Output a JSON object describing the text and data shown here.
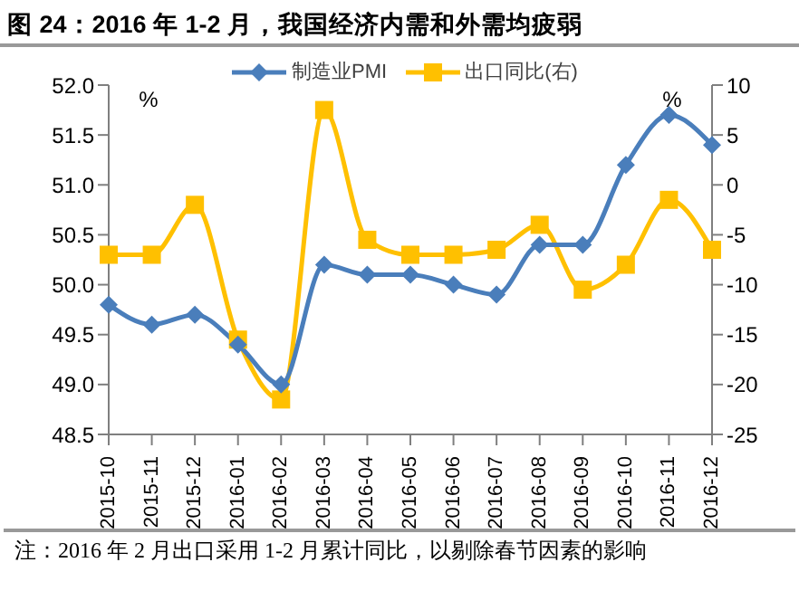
{
  "chart_data": {
    "type": "line",
    "title": "图 24：2016 年 1-2 月，我国经济内需和外需均疲弱",
    "ylabel": "%",
    "y2label": "%",
    "categories": [
      "2015-10",
      "2015-11",
      "2015-12",
      "2016-01",
      "2016-02",
      "2016-03",
      "2016-04",
      "2016-05",
      "2016-06",
      "2016-07",
      "2016-08",
      "2016-09",
      "2016-10",
      "2016-11",
      "2016-12"
    ],
    "series": [
      {
        "name": "制造业PMI",
        "color": "#4a7ebb",
        "marker": "diamond",
        "values": [
          49.8,
          49.6,
          49.7,
          49.4,
          49.0,
          50.2,
          50.1,
          50.1,
          50.0,
          49.9,
          50.4,
          50.4,
          51.2,
          51.7,
          51.4
        ]
      },
      {
        "name": "出口同比(右)",
        "color": "#ffc000",
        "marker": "square",
        "axis": "y2",
        "values": [
          -7,
          -7,
          -2,
          -15.5,
          -21.5,
          7.5,
          -5.5,
          -7,
          -7,
          -6.5,
          -4,
          -10.5,
          -8,
          -1.5,
          -6.5
        ]
      }
    ],
    "ylim": [
      48.5,
      52.0
    ],
    "yticks": [
      48.5,
      {
        "value": 49,
        "label": "49.0"
      },
      49.5,
      {
        "value": 50,
        "label": "50.0"
      },
      50.5,
      {
        "value": 51,
        "label": "51.0"
      },
      51.5,
      {
        "value": 52,
        "label": "52.0"
      }
    ],
    "y2lim": [
      -25,
      10
    ],
    "y2ticks": [
      -25,
      -20,
      -15,
      -10,
      -5,
      0,
      5,
      10
    ],
    "grid": false,
    "legend": "top",
    "line_style": "solid",
    "annotations": [
      "注：2016 年 2 月出口采用 1-2 月累计同比，以剔除春节因素的影响"
    ]
  }
}
